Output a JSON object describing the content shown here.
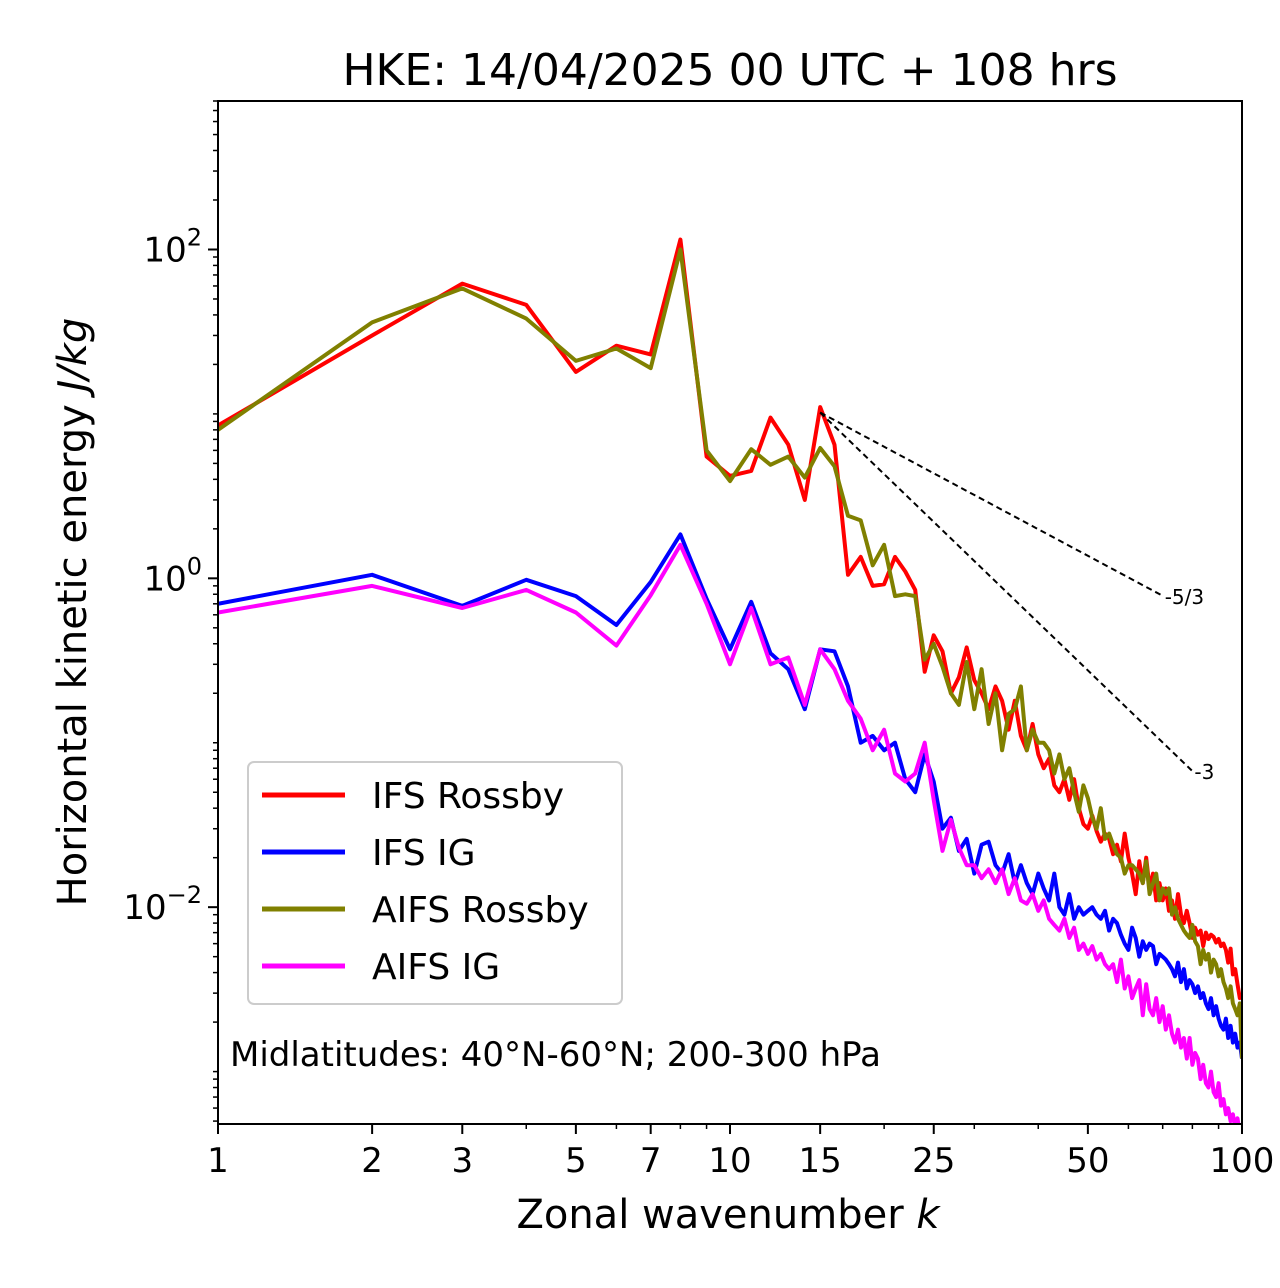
{
  "chart_data": {
    "type": "line",
    "title": "HKE: 14/04/2025 00 UTC + 108 hrs",
    "xlabel": "Zonal wavenumber",
    "xlabel_var": "k",
    "ylabel": "Horizontal kinetic energy",
    "ylabel_unit": "J/kg",
    "x_scale": "log",
    "y_scale": "log",
    "xlim": [
      1,
      100
    ],
    "ylim": [
      0.00048,
      800
    ],
    "x_ticks": [
      1,
      2,
      3,
      5,
      7,
      10,
      15,
      25,
      50,
      100
    ],
    "x_tick_labels": [
      "1",
      "2",
      "3",
      "5",
      "7",
      "10",
      "15",
      "25",
      "50",
      "100"
    ],
    "y_ticks": [
      {
        "value": 100,
        "base": "10",
        "exp": "2"
      },
      {
        "value": 1,
        "base": "10",
        "exp": "0"
      },
      {
        "value": 0.01,
        "base": "10",
        "exp": "−2"
      }
    ],
    "annotation": "Midlatitudes: 40°N-60°N; 200-300 hPa",
    "legend_position": "lower-left",
    "reference_lines": [
      {
        "label": "-5/3",
        "slope": -1.6667,
        "x": [
          15,
          70
        ]
      },
      {
        "label": "-3",
        "slope": -3,
        "x": [
          15,
          80
        ]
      }
    ],
    "reference_anchor": {
      "x": 15,
      "y": 10.2
    },
    "series": [
      {
        "name": "IFS Rossby",
        "color": "#ff0000",
        "x": [
          1,
          2,
          3,
          4,
          5,
          6,
          7,
          8,
          9,
          10,
          11,
          12,
          13,
          14,
          15,
          16,
          17,
          18,
          19,
          20,
          21,
          22,
          23,
          24,
          25,
          26,
          27,
          28,
          29,
          30,
          31,
          32,
          33,
          34,
          35,
          36,
          37,
          38,
          39,
          40,
          41,
          42,
          43,
          44,
          45,
          46,
          47,
          48,
          49,
          50,
          51,
          52,
          53,
          54,
          55,
          56,
          57,
          58,
          59,
          60,
          61,
          62,
          63,
          64,
          65,
          66,
          67,
          68,
          69,
          70,
          71,
          72,
          73,
          74,
          75,
          76,
          77,
          78,
          79,
          80,
          81,
          82,
          83,
          84,
          85,
          86,
          87,
          88,
          89,
          90,
          91,
          92,
          93,
          94,
          95,
          96,
          97,
          98,
          99,
          100
        ],
        "y": [
          8.5,
          30,
          62,
          46,
          18,
          26,
          23,
          115,
          5.5,
          4.2,
          4.5,
          9.5,
          6.5,
          3,
          11,
          6.5,
          1.05,
          1.35,
          0.9,
          0.92,
          1.35,
          1.1,
          0.85,
          0.27,
          0.45,
          0.36,
          0.2,
          0.25,
          0.38,
          0.24,
          0.2,
          0.16,
          0.22,
          0.18,
          0.12,
          0.18,
          0.11,
          0.09,
          0.13,
          0.085,
          0.07,
          0.08,
          0.055,
          0.05,
          0.06,
          0.045,
          0.06,
          0.04,
          0.032,
          0.03,
          0.036,
          0.029,
          0.025,
          0.028,
          0.026,
          0.021,
          0.024,
          0.019,
          0.028,
          0.02,
          0.016,
          0.012,
          0.019,
          0.014,
          0.02,
          0.013,
          0.016,
          0.011,
          0.014,
          0.011,
          0.013,
          0.0095,
          0.011,
          0.0085,
          0.012,
          0.009,
          0.008,
          0.0095,
          0.008,
          0.0065,
          0.0075,
          0.0068,
          0.0072,
          0.0058,
          0.007,
          0.0064,
          0.0068,
          0.0066,
          0.0061,
          0.0064,
          0.0058,
          0.006,
          0.0055,
          0.0046,
          0.0056,
          0.0039,
          0.0042,
          0.0034,
          0.0028,
          0.0029
        ]
      },
      {
        "name": "IFS IG",
        "color": "#0000ff",
        "x": [
          1,
          2,
          3,
          4,
          5,
          6,
          7,
          8,
          9,
          10,
          11,
          12,
          13,
          14,
          15,
          16,
          17,
          18,
          19,
          20,
          21,
          22,
          23,
          24,
          25,
          26,
          27,
          28,
          29,
          30,
          31,
          32,
          33,
          34,
          35,
          36,
          37,
          38,
          39,
          40,
          41,
          42,
          43,
          44,
          45,
          46,
          47,
          48,
          49,
          50,
          51,
          52,
          53,
          54,
          55,
          56,
          57,
          58,
          59,
          60,
          61,
          62,
          63,
          64,
          65,
          66,
          67,
          68,
          69,
          70,
          71,
          72,
          73,
          74,
          75,
          76,
          77,
          78,
          79,
          80,
          81,
          82,
          83,
          84,
          85,
          86,
          87,
          88,
          89,
          90,
          91,
          92,
          93,
          94,
          95,
          96,
          97,
          98,
          99,
          100
        ],
        "y": [
          0.7,
          1.05,
          0.68,
          0.98,
          0.78,
          0.52,
          0.95,
          1.85,
          0.75,
          0.37,
          0.72,
          0.35,
          0.28,
          0.16,
          0.37,
          0.36,
          0.22,
          0.1,
          0.11,
          0.09,
          0.1,
          0.06,
          0.05,
          0.085,
          0.058,
          0.03,
          0.035,
          0.022,
          0.026,
          0.016,
          0.024,
          0.025,
          0.018,
          0.016,
          0.021,
          0.014,
          0.018,
          0.014,
          0.012,
          0.016,
          0.013,
          0.011,
          0.016,
          0.01,
          0.009,
          0.012,
          0.0085,
          0.01,
          0.009,
          0.0095,
          0.01,
          0.009,
          0.0085,
          0.0095,
          0.0072,
          0.0085,
          0.008,
          0.0068,
          0.006,
          0.0055,
          0.0075,
          0.0065,
          0.005,
          0.0062,
          0.0055,
          0.006,
          0.0058,
          0.0045,
          0.0052,
          0.005,
          0.0048,
          0.0045,
          0.0042,
          0.0038,
          0.0046,
          0.0035,
          0.0042,
          0.0032,
          0.0036,
          0.0034,
          0.003,
          0.0033,
          0.0028,
          0.003,
          0.0026,
          0.0024,
          0.0028,
          0.0022,
          0.0025,
          0.0021,
          0.0019,
          0.0018,
          0.0021,
          0.0016,
          0.0019,
          0.0015,
          0.0017,
          0.0014,
          0.0015,
          0.0012
        ]
      },
      {
        "name": "AIFS Rossby",
        "color": "#808000",
        "x": [
          1,
          2,
          3,
          4,
          5,
          6,
          7,
          8,
          9,
          10,
          11,
          12,
          13,
          14,
          15,
          16,
          17,
          18,
          19,
          20,
          21,
          22,
          23,
          24,
          25,
          26,
          27,
          28,
          29,
          30,
          31,
          32,
          33,
          34,
          35,
          36,
          37,
          38,
          39,
          40,
          41,
          42,
          43,
          44,
          45,
          46,
          47,
          48,
          49,
          50,
          51,
          52,
          53,
          54,
          55,
          56,
          57,
          58,
          59,
          60,
          61,
          62,
          63,
          64,
          65,
          66,
          67,
          68,
          69,
          70,
          71,
          72,
          73,
          74,
          75,
          76,
          77,
          78,
          79,
          80,
          81,
          82,
          83,
          84,
          85,
          86,
          87,
          88,
          89,
          90,
          91,
          92,
          93,
          94,
          95,
          96,
          97,
          98,
          99,
          100
        ],
        "y": [
          8,
          36,
          58,
          38,
          21,
          25,
          19,
          100,
          6,
          3.9,
          6.1,
          4.9,
          5.5,
          4.1,
          6.2,
          4.8,
          2.4,
          2.25,
          1.2,
          1.6,
          0.78,
          0.8,
          0.78,
          0.32,
          0.4,
          0.29,
          0.2,
          0.17,
          0.31,
          0.16,
          0.28,
          0.13,
          0.2,
          0.09,
          0.15,
          0.16,
          0.22,
          0.09,
          0.12,
          0.1,
          0.1,
          0.09,
          0.065,
          0.085,
          0.06,
          0.07,
          0.05,
          0.038,
          0.055,
          0.046,
          0.035,
          0.03,
          0.04,
          0.026,
          0.028,
          0.024,
          0.021,
          0.02,
          0.016,
          0.018,
          0.018,
          0.017,
          0.016,
          0.014,
          0.019,
          0.012,
          0.014,
          0.016,
          0.011,
          0.013,
          0.012,
          0.013,
          0.009,
          0.01,
          0.0085,
          0.0078,
          0.0072,
          0.0068,
          0.0065,
          0.0078,
          0.0062,
          0.0058,
          0.0045,
          0.0055,
          0.0048,
          0.0052,
          0.004,
          0.0048,
          0.0045,
          0.0038,
          0.0042,
          0.0035,
          0.0032,
          0.0028,
          0.0033,
          0.0026,
          0.0024,
          0.0022,
          0.0026,
          0.0012
        ]
      },
      {
        "name": "AIFS IG",
        "color": "#ff00ff",
        "x": [
          1,
          2,
          3,
          4,
          5,
          6,
          7,
          8,
          9,
          10,
          11,
          12,
          13,
          14,
          15,
          16,
          17,
          18,
          19,
          20,
          21,
          22,
          23,
          24,
          25,
          26,
          27,
          28,
          29,
          30,
          31,
          32,
          33,
          34,
          35,
          36,
          37,
          38,
          39,
          40,
          41,
          42,
          43,
          44,
          45,
          46,
          47,
          48,
          49,
          50,
          51,
          52,
          53,
          54,
          55,
          56,
          57,
          58,
          59,
          60,
          61,
          62,
          63,
          64,
          65,
          66,
          67,
          68,
          69,
          70,
          71,
          72,
          73,
          74,
          75,
          76,
          77,
          78,
          79,
          80,
          81,
          82,
          83,
          84,
          85,
          86,
          87,
          88,
          89,
          90,
          91,
          92,
          93,
          94,
          95,
          96,
          97,
          98,
          99,
          100
        ],
        "y": [
          0.62,
          0.9,
          0.66,
          0.85,
          0.62,
          0.39,
          0.79,
          1.6,
          0.7,
          0.3,
          0.66,
          0.3,
          0.33,
          0.17,
          0.37,
          0.28,
          0.18,
          0.14,
          0.09,
          0.12,
          0.065,
          0.058,
          0.065,
          0.1,
          0.045,
          0.022,
          0.034,
          0.023,
          0.018,
          0.018,
          0.015,
          0.017,
          0.014,
          0.017,
          0.012,
          0.015,
          0.011,
          0.0105,
          0.012,
          0.0095,
          0.011,
          0.0085,
          0.0078,
          0.0072,
          0.0085,
          0.0065,
          0.0075,
          0.0055,
          0.006,
          0.0052,
          0.0058,
          0.0048,
          0.0052,
          0.0045,
          0.0042,
          0.0045,
          0.0035,
          0.0048,
          0.0032,
          0.0038,
          0.0028,
          0.0032,
          0.0036,
          0.0022,
          0.0034,
          0.0024,
          0.0022,
          0.0028,
          0.002,
          0.0025,
          0.0018,
          0.0022,
          0.0017,
          0.0015,
          0.0018,
          0.0014,
          0.0016,
          0.0012,
          0.0016,
          0.0011,
          0.0013,
          0.0012,
          0.0009,
          0.0011,
          0.00085,
          0.0008,
          0.001,
          0.00075,
          0.0007,
          0.00085,
          0.00062,
          0.00068,
          0.00055,
          0.0006,
          0.0005,
          0.00055,
          0.00046,
          0.00052,
          0.00042,
          0.0004
        ]
      }
    ]
  }
}
